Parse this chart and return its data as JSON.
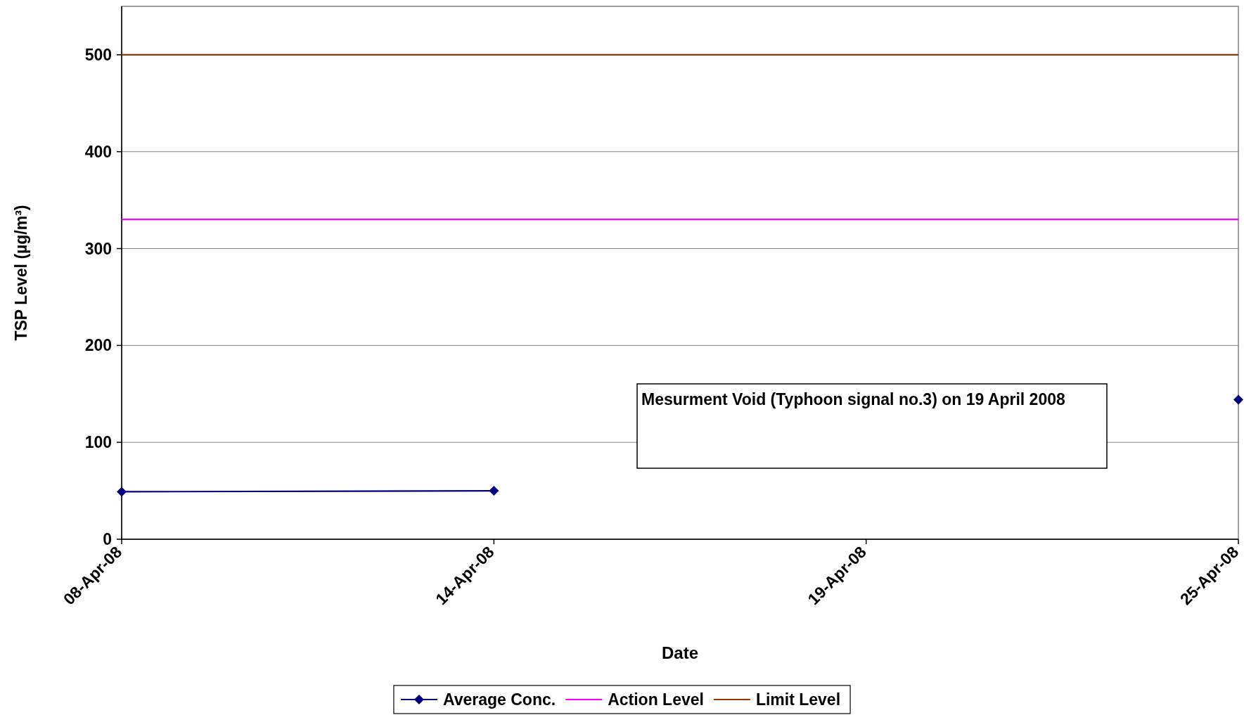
{
  "chart_data": {
    "type": "line",
    "categories": [
      "08-Apr-08",
      "14-Apr-08",
      "19-Apr-08",
      "25-Apr-08"
    ],
    "series": [
      {
        "name": "Average Conc.",
        "color": "#000080",
        "values": [
          49,
          50,
          null,
          144
        ],
        "marker": "diamond"
      },
      {
        "name": "Action Level",
        "color": "#ff00ff",
        "values": [
          330,
          330,
          330,
          330
        ],
        "marker": "none"
      },
      {
        "name": "Limit Level",
        "color": "#993300",
        "values": [
          500,
          500,
          500,
          500
        ],
        "marker": "none"
      }
    ],
    "xlabel": "Date",
    "ylabel": "TSP Level  (µg/m³)",
    "ylim": [
      0,
      550
    ],
    "yticks": [
      0,
      100,
      200,
      300,
      400,
      500
    ],
    "grid": "y",
    "legend": "bottom",
    "line_style": "solid",
    "annotations": [
      "Mesurment Void (Typhoon signal no.3) on 19 April 2008"
    ]
  }
}
